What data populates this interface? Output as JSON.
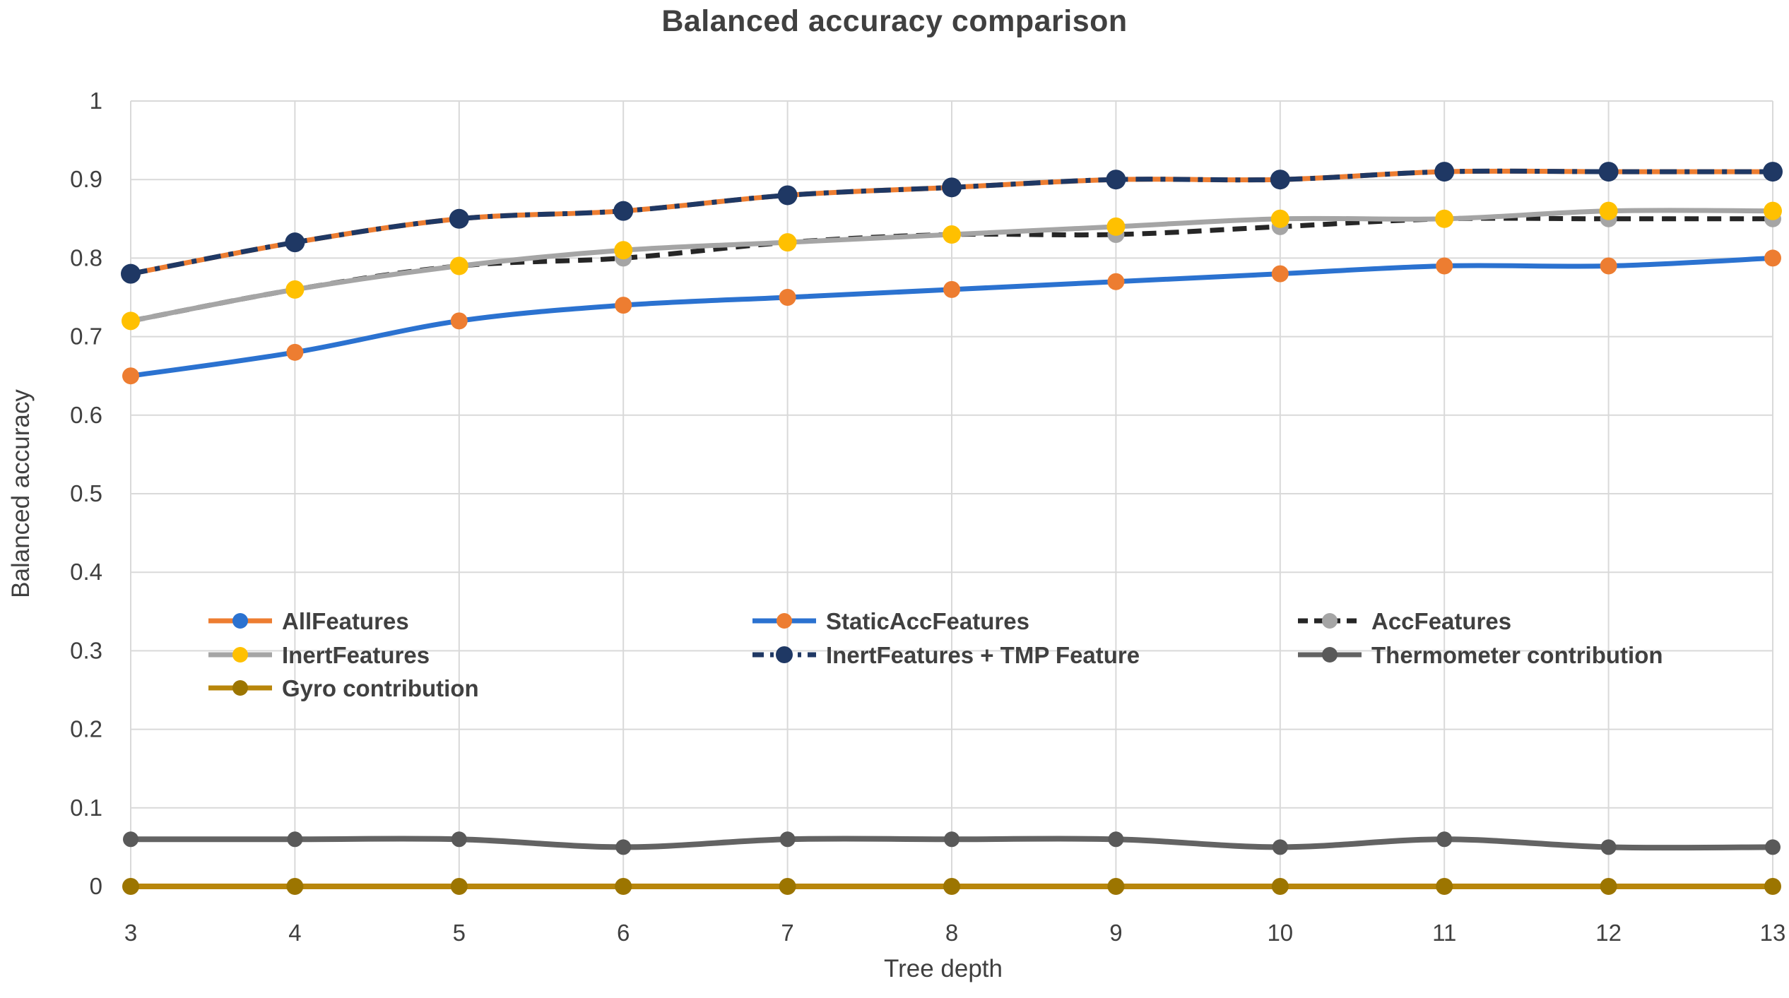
{
  "chart_data": {
    "type": "line",
    "title": "Balanced accuracy comparison",
    "xlabel": "Tree depth",
    "ylabel": "Balanced accuracy",
    "x": [
      3,
      4,
      5,
      6,
      7,
      8,
      9,
      10,
      11,
      12,
      13
    ],
    "xtick_labels": [
      "3",
      "4",
      "5",
      "6",
      "7",
      "8",
      "9",
      "10",
      "11",
      "12",
      "13"
    ],
    "ylim": [
      0,
      1
    ],
    "ytick_labels": [
      "0",
      "0.1",
      "0.2",
      "0.3",
      "0.4",
      "0.5",
      "0.6",
      "0.7",
      "0.8",
      "0.9",
      "1"
    ],
    "grid": true,
    "legend_position": "inside plot, lower-left, 3 columns",
    "series": [
      {
        "name": "AllFeatures",
        "values": [
          0.78,
          0.82,
          0.85,
          0.86,
          0.88,
          0.89,
          0.9,
          0.9,
          0.91,
          0.91,
          0.91
        ],
        "line_color": "#ED7D31",
        "line_style": "solid",
        "marker_color": "#2B72D0"
      },
      {
        "name": "StaticAccFeatures",
        "values": [
          0.65,
          0.68,
          0.72,
          0.74,
          0.75,
          0.76,
          0.77,
          0.78,
          0.79,
          0.79,
          0.8
        ],
        "line_color": "#2B72D0",
        "line_style": "solid",
        "marker_color": "#ED7D31"
      },
      {
        "name": "AccFeatures",
        "values": [
          0.72,
          0.76,
          0.79,
          0.8,
          0.82,
          0.83,
          0.83,
          0.84,
          0.85,
          0.85,
          0.85
        ],
        "line_color": "#262626",
        "line_style": "dashed",
        "marker_color": "#A5A5A5"
      },
      {
        "name": "InertFeatures",
        "values": [
          0.72,
          0.76,
          0.79,
          0.81,
          0.82,
          0.83,
          0.84,
          0.85,
          0.85,
          0.86,
          0.86
        ],
        "line_color": "#A5A5A5",
        "line_style": "solid",
        "marker_color": "#FFC000"
      },
      {
        "name": "InertFeatures + TMP Feature",
        "values": [
          0.78,
          0.82,
          0.85,
          0.86,
          0.88,
          0.89,
          0.9,
          0.9,
          0.91,
          0.91,
          0.91
        ],
        "line_color": "#1F3864",
        "line_style": "dash-dot",
        "marker_color": "#1F3864"
      },
      {
        "name": "Thermometer contribution",
        "values": [
          0.06,
          0.06,
          0.06,
          0.05,
          0.06,
          0.06,
          0.06,
          0.05,
          0.06,
          0.05,
          0.05
        ],
        "line_color": "#636363",
        "line_style": "solid",
        "marker_color": "#595959"
      },
      {
        "name": "Gyro contribution",
        "values": [
          0,
          0,
          0,
          0,
          0,
          0,
          0,
          0,
          0,
          0,
          0
        ],
        "line_color": "#B8860B",
        "line_style": "solid",
        "marker_color": "#9C7500"
      }
    ]
  },
  "legend": {
    "entries": [
      {
        "series": 0,
        "col": 0,
        "row": 0
      },
      {
        "series": 1,
        "col": 1,
        "row": 0
      },
      {
        "series": 2,
        "col": 2,
        "row": 0
      },
      {
        "series": 3,
        "col": 0,
        "row": 1
      },
      {
        "series": 4,
        "col": 1,
        "row": 1
      },
      {
        "series": 5,
        "col": 2,
        "row": 1
      },
      {
        "series": 6,
        "col": 0,
        "row": 2
      }
    ]
  },
  "style": {
    "grid_color": "#D9D9D9",
    "text_color": "#404040"
  }
}
